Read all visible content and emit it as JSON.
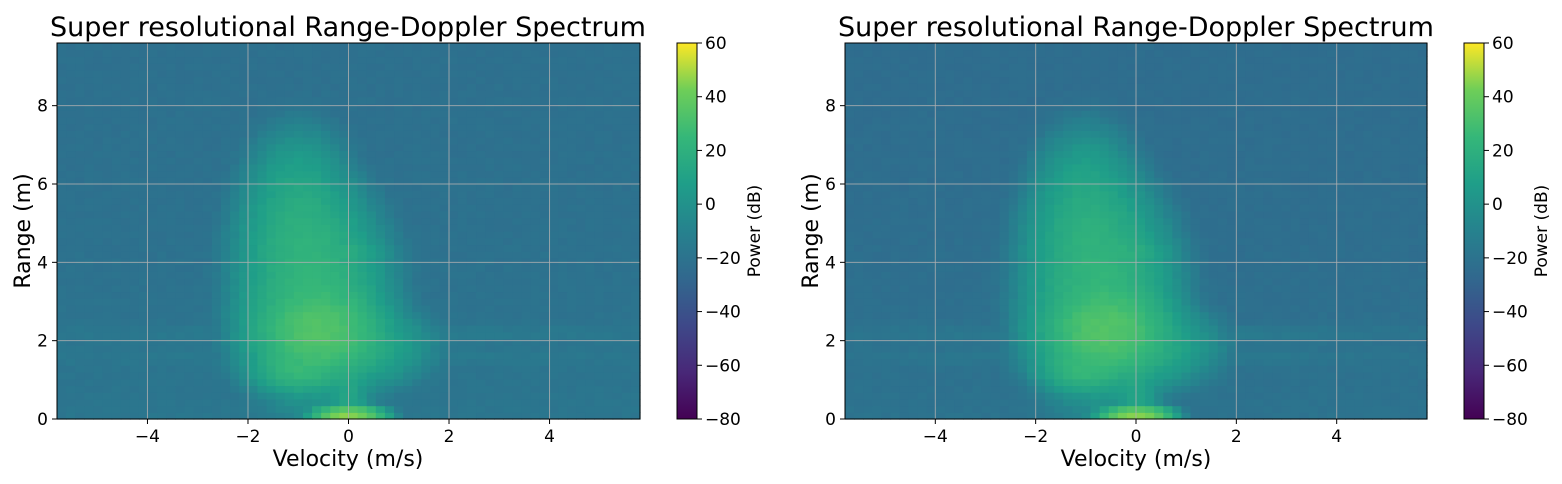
{
  "chart_data": [
    {
      "type": "heatmap",
      "title": "Super resolutional Range-Doppler Spectrum",
      "xlabel": "Velocity (m/s)",
      "ylabel": "Range (m)",
      "xlim": [
        -5.8,
        5.8
      ],
      "ylim": [
        0,
        9.6
      ],
      "xticks": [
        -4,
        -2,
        0,
        2,
        4
      ],
      "yticks": [
        0,
        2,
        4,
        6,
        8
      ],
      "grid": true,
      "colormap": "viridis",
      "colorbar": {
        "label": "Power (dB)",
        "range": [
          -80,
          60
        ],
        "ticks": [
          60,
          40,
          20,
          0,
          -20,
          -40,
          -60,
          -80
        ]
      },
      "background_power_db": -22,
      "blobs": [
        {
          "v": -0.6,
          "r": 2.3,
          "sv": 0.4,
          "sr": 0.4,
          "power_db": 32
        },
        {
          "v": -0.7,
          "r": 3.2,
          "sv": 0.45,
          "sr": 0.8,
          "power_db": 22
        },
        {
          "v": -0.9,
          "r": 4.6,
          "sv": 0.4,
          "sr": 0.6,
          "power_db": 18
        },
        {
          "v": -1.0,
          "r": 5.6,
          "sv": 0.35,
          "sr": 0.6,
          "power_db": 12
        },
        {
          "v": -1.0,
          "r": 1.3,
          "sv": 0.3,
          "sr": 0.2,
          "power_db": 22
        },
        {
          "v": -0.3,
          "r": 1.9,
          "sv": 0.55,
          "sr": 0.35,
          "power_db": 18
        },
        {
          "v": 0.0,
          "r": 0.08,
          "sv": 0.2,
          "sr": 0.08,
          "power_db": 42
        },
        {
          "v": 0.0,
          "r": 0.6,
          "sv": 0.15,
          "sr": 0.5,
          "power_db": 8
        },
        {
          "v": -0.1,
          "r": 4.3,
          "sv": 0.25,
          "sr": 0.1,
          "power_db": 14
        }
      ],
      "band_rows": [
        {
          "r": 2.2,
          "power_db": -12
        },
        {
          "r": 1.6,
          "power_db": -15
        }
      ]
    },
    {
      "type": "heatmap",
      "title": "Super resolutional Range-Doppler Spectrum",
      "xlabel": "Velocity (m/s)",
      "ylabel": "Range (m)",
      "xlim": [
        -5.8,
        5.8
      ],
      "ylim": [
        0,
        9.6
      ],
      "xticks": [
        -4,
        -2,
        0,
        2,
        4
      ],
      "yticks": [
        0,
        2,
        4,
        6,
        8
      ],
      "grid": true,
      "colormap": "viridis",
      "colorbar": {
        "label": "Power (dB)",
        "range": [
          -80,
          60
        ],
        "ticks": [
          60,
          40,
          20,
          0,
          -20,
          -40,
          -60,
          -80
        ]
      },
      "background_power_db": -24,
      "blobs": [
        {
          "v": -0.6,
          "r": 2.3,
          "sv": 0.4,
          "sr": 0.4,
          "power_db": 32
        },
        {
          "v": -0.7,
          "r": 3.2,
          "sv": 0.45,
          "sr": 0.8,
          "power_db": 22
        },
        {
          "v": -0.9,
          "r": 4.6,
          "sv": 0.4,
          "sr": 0.6,
          "power_db": 18
        },
        {
          "v": -1.0,
          "r": 5.6,
          "sv": 0.35,
          "sr": 0.6,
          "power_db": 12
        },
        {
          "v": -1.0,
          "r": 1.3,
          "sv": 0.3,
          "sr": 0.2,
          "power_db": 22
        },
        {
          "v": -0.3,
          "r": 1.9,
          "sv": 0.55,
          "sr": 0.35,
          "power_db": 18
        },
        {
          "v": 0.0,
          "r": 0.08,
          "sv": 0.2,
          "sr": 0.08,
          "power_db": 42
        },
        {
          "v": 0.0,
          "r": 0.6,
          "sv": 0.15,
          "sr": 0.5,
          "power_db": 8
        },
        {
          "v": -0.1,
          "r": 4.3,
          "sv": 0.25,
          "sr": 0.1,
          "power_db": 14
        }
      ],
      "band_rows": [
        {
          "r": 2.2,
          "power_db": -12
        },
        {
          "r": 1.6,
          "power_db": -15
        }
      ]
    }
  ]
}
